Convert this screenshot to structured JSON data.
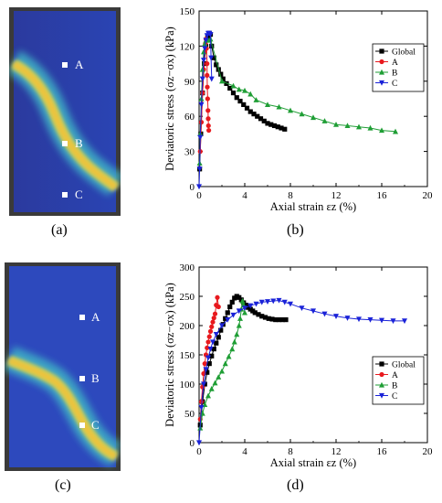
{
  "panels": {
    "a": {
      "label": "(a)",
      "points": [
        "A",
        "B",
        "C"
      ]
    },
    "b": {
      "label": "(b)"
    },
    "c": {
      "label": "(c)",
      "points": [
        "A",
        "B",
        "C"
      ]
    },
    "d": {
      "label": "(d)"
    }
  },
  "colors": {
    "global": "#000000",
    "A": "#e8191e",
    "B": "#1f9e35",
    "C": "#1a22d8"
  },
  "chart_data": [
    {
      "type": "line",
      "panel": "b",
      "xlabel": "Axial strain εz (%)",
      "ylabel": "Deviatoric stress (σz−σx) (kPa)",
      "xlim": [
        0,
        20
      ],
      "ylim": [
        0,
        150
      ],
      "xticks": [
        0,
        4,
        8,
        12,
        16,
        20
      ],
      "yticks": [
        0,
        30,
        60,
        90,
        120,
        150
      ],
      "legend": "top-right",
      "series": [
        {
          "name": "Global",
          "marker": "square",
          "color": "#000000",
          "x": [
            0.05,
            0.15,
            0.3,
            0.45,
            0.6,
            0.75,
            0.9,
            1.0,
            1.1,
            1.3,
            1.5,
            1.7,
            1.9,
            2.1,
            2.4,
            2.7,
            3.0,
            3.3,
            3.6,
            3.9,
            4.2,
            4.5,
            4.8,
            5.1,
            5.4,
            5.7,
            6.0,
            6.3,
            6.6,
            6.9,
            7.2,
            7.5
          ],
          "y": [
            15,
            45,
            80,
            105,
            120,
            128,
            131,
            130,
            120,
            110,
            104,
            100,
            96,
            92,
            88,
            84,
            80,
            76,
            73,
            70,
            67,
            64,
            62,
            60,
            58,
            56,
            54,
            53,
            52,
            51,
            50,
            49
          ]
        },
        {
          "name": "A",
          "marker": "circle",
          "color": "#e8191e",
          "x": [
            0.1,
            0.2,
            0.3,
            0.4,
            0.5,
            0.55,
            0.6,
            0.65,
            0.7,
            0.7,
            0.72,
            0.75,
            0.78,
            0.8,
            0.82,
            0.85
          ],
          "y": [
            30,
            55,
            80,
            100,
            115,
            122,
            126,
            118,
            105,
            95,
            85,
            75,
            65,
            58,
            52,
            48
          ]
        },
        {
          "name": "B",
          "marker": "triangle-up",
          "color": "#1f9e35",
          "x": [
            0.05,
            0.1,
            0.2,
            0.3,
            0.4,
            0.5,
            0.6,
            0.8,
            1.0,
            2.0,
            3.0,
            3.5,
            4.0,
            4.5,
            5.0,
            6.0,
            7.0,
            8.0,
            9.0,
            10.0,
            11.0,
            12.0,
            13.0,
            14.0,
            15.0,
            16.0,
            17.2
          ],
          "y": [
            20,
            45,
            75,
            100,
            115,
            122,
            125,
            125,
            126,
            90,
            86,
            83,
            82,
            79,
            74,
            70,
            68,
            65,
            62,
            59,
            56,
            53,
            52,
            51,
            50,
            48,
            47
          ]
        },
        {
          "name": "C",
          "marker": "triangle-down",
          "color": "#1a22d8",
          "x": [
            0.0,
            0.05,
            0.1,
            0.2,
            0.3,
            0.4,
            0.5,
            0.6,
            0.7,
            0.8,
            0.9,
            1.0,
            1.05,
            1.1
          ],
          "y": [
            0,
            15,
            42,
            70,
            92,
            108,
            118,
            125,
            129,
            131,
            131,
            130,
            110,
            92
          ]
        }
      ]
    },
    {
      "type": "line",
      "panel": "d",
      "xlabel": "Axial strain εz (%)",
      "ylabel": "Deviatoric stress (σz−σx) (kPa)",
      "xlim": [
        0,
        20
      ],
      "ylim": [
        0,
        300
      ],
      "xticks": [
        0,
        4,
        8,
        12,
        16,
        20
      ],
      "yticks": [
        0,
        50,
        100,
        150,
        200,
        250,
        300
      ],
      "legend": "bottom-right",
      "series": [
        {
          "name": "Global",
          "marker": "square",
          "color": "#000000",
          "x": [
            0.1,
            0.3,
            0.5,
            0.7,
            0.9,
            1.1,
            1.3,
            1.5,
            1.7,
            1.9,
            2.1,
            2.3,
            2.5,
            2.7,
            2.9,
            3.1,
            3.3,
            3.5,
            3.7,
            3.9,
            4.1,
            4.3,
            4.5,
            4.7,
            4.9,
            5.2,
            5.5,
            5.8,
            6.1,
            6.4,
            6.7,
            7.0,
            7.3,
            7.6
          ],
          "y": [
            30,
            70,
            100,
            120,
            135,
            148,
            160,
            170,
            180,
            192,
            202,
            212,
            222,
            232,
            240,
            247,
            250,
            248,
            244,
            239,
            235,
            231,
            228,
            225,
            222,
            219,
            216,
            214,
            212,
            211,
            210,
            210,
            210,
            210
          ]
        },
        {
          "name": "A",
          "marker": "circle",
          "color": "#e8191e",
          "x": [
            0.1,
            0.2,
            0.3,
            0.4,
            0.5,
            0.6,
            0.7,
            0.8,
            0.9,
            1.0,
            1.1,
            1.2,
            1.3,
            1.4,
            1.5,
            1.6,
            1.7
          ],
          "y": [
            40,
            70,
            95,
            118,
            135,
            150,
            162,
            172,
            181,
            190,
            198,
            206,
            213,
            220,
            235,
            248,
            232
          ]
        },
        {
          "name": "B",
          "marker": "triangle-up",
          "color": "#1f9e35",
          "x": [
            0.1,
            0.3,
            0.5,
            0.8,
            1.1,
            1.4,
            1.7,
            2.0,
            2.3,
            2.6,
            2.9,
            3.1,
            3.3,
            3.5,
            3.6,
            3.7,
            3.8,
            3.9,
            4.0
          ],
          "y": [
            25,
            50,
            65,
            80,
            92,
            102,
            112,
            122,
            135,
            147,
            160,
            172,
            185,
            200,
            212,
            228,
            242,
            235,
            222
          ]
        },
        {
          "name": "C",
          "marker": "triangle-down",
          "color": "#1a22d8",
          "x": [
            0.0,
            0.2,
            0.4,
            0.6,
            0.8,
            1.0,
            1.2,
            1.5,
            2.0,
            2.5,
            3.0,
            3.5,
            4.0,
            4.5,
            5.0,
            5.5,
            6.0,
            6.5,
            7.0,
            7.5,
            8.0,
            9.0,
            10.0,
            11.0,
            12.0,
            13.0,
            14.0,
            15.0,
            16.0,
            17.0,
            18.0
          ],
          "y": [
            0,
            60,
            100,
            125,
            145,
            160,
            172,
            185,
            200,
            210,
            218,
            225,
            230,
            234,
            237,
            240,
            241,
            242,
            243,
            240,
            237,
            230,
            225,
            220,
            216,
            213,
            211,
            210,
            209,
            208,
            208
          ]
        }
      ]
    }
  ]
}
